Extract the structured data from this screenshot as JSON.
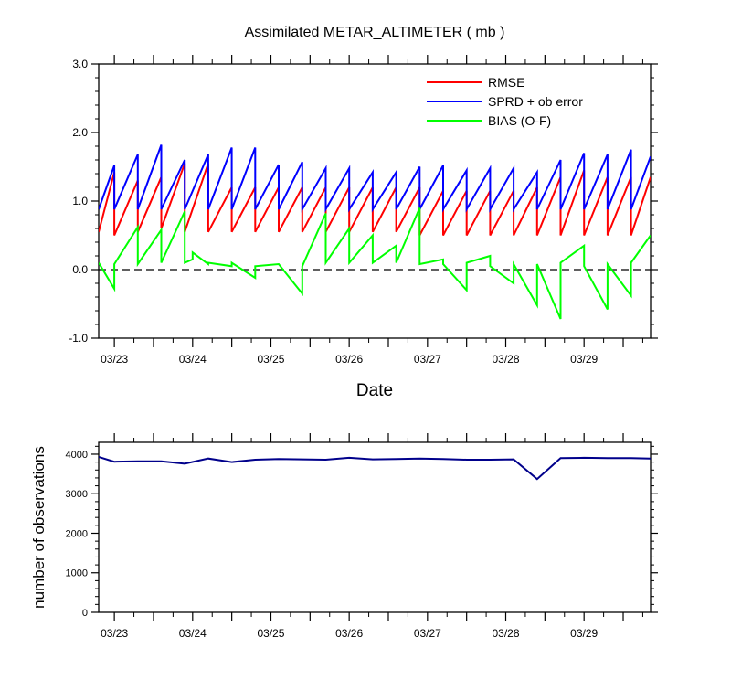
{
  "chart_data": [
    {
      "type": "line",
      "title": "Assimilated METAR_ALTIMETER ( mb )",
      "xlabel": "Date",
      "ylabel": "",
      "ylim": [
        -1.0,
        3.0
      ],
      "yticks": [
        -1.0,
        0.0,
        1.0,
        2.0,
        3.0
      ],
      "ytick_labels": [
        "-1.0",
        "0.0",
        "1.0",
        "2.0",
        "3.0"
      ],
      "xlim": [
        22.8,
        29.85
      ],
      "xticks": [
        23,
        24,
        25,
        26,
        27,
        28,
        29
      ],
      "xtick_labels": [
        "03/23",
        "03/24",
        "03/25",
        "03/26",
        "03/27",
        "03/28",
        "03/29"
      ],
      "zero_line": "dashed",
      "legend_position": "top-right",
      "series": [
        {
          "name": "RMSE",
          "color": "#ff0000",
          "x": [
            22.8,
            23.0,
            23.0,
            23.3,
            23.3,
            23.6,
            23.6,
            23.9,
            23.9,
            24.2,
            24.2,
            24.5,
            24.5,
            24.8,
            24.8,
            25.1,
            25.1,
            25.4,
            25.4,
            25.7,
            25.7,
            26.0,
            26.0,
            26.3,
            26.3,
            26.6,
            26.6,
            26.9,
            26.9,
            27.2,
            27.2,
            27.5,
            27.5,
            27.8,
            27.8,
            28.1,
            28.1,
            28.4,
            28.4,
            28.7,
            28.7,
            29.0,
            29.0,
            29.3,
            29.3,
            29.6,
            29.6,
            29.85
          ],
          "values": [
            0.55,
            1.42,
            0.5,
            1.3,
            0.55,
            1.35,
            0.6,
            1.55,
            0.55,
            1.55,
            0.55,
            1.2,
            0.55,
            1.2,
            0.55,
            1.2,
            0.55,
            1.2,
            0.55,
            1.2,
            0.55,
            1.2,
            0.55,
            1.2,
            0.55,
            1.2,
            0.55,
            1.2,
            0.5,
            1.15,
            0.5,
            1.15,
            0.5,
            1.15,
            0.5,
            1.15,
            0.5,
            1.2,
            0.5,
            1.35,
            0.5,
            1.45,
            0.5,
            1.35,
            0.5,
            1.35,
            0.5,
            1.35
          ]
        },
        {
          "name": "SPRD + ob error",
          "color": "#0000ff",
          "x": [
            22.8,
            23.0,
            23.0,
            23.3,
            23.3,
            23.6,
            23.6,
            23.9,
            23.9,
            24.2,
            24.2,
            24.5,
            24.5,
            24.8,
            24.8,
            25.1,
            25.1,
            25.4,
            25.4,
            25.7,
            25.7,
            26.0,
            26.0,
            26.3,
            26.3,
            26.6,
            26.6,
            26.9,
            26.9,
            27.2,
            27.2,
            27.5,
            27.5,
            27.8,
            27.8,
            28.1,
            28.1,
            28.4,
            28.4,
            28.7,
            28.7,
            29.0,
            29.0,
            29.3,
            29.3,
            29.6,
            29.6,
            29.85
          ],
          "values": [
            0.88,
            1.52,
            0.88,
            1.68,
            0.88,
            1.82,
            0.88,
            1.6,
            0.88,
            1.68,
            0.88,
            1.78,
            0.88,
            1.78,
            0.88,
            1.53,
            0.88,
            1.57,
            0.88,
            1.48,
            0.88,
            1.48,
            0.88,
            1.42,
            0.88,
            1.42,
            0.88,
            1.5,
            0.88,
            1.52,
            0.88,
            1.45,
            0.88,
            1.48,
            0.88,
            1.48,
            0.88,
            1.42,
            0.88,
            1.6,
            0.88,
            1.7,
            0.88,
            1.68,
            0.88,
            1.75,
            0.88,
            1.65
          ]
        },
        {
          "name": "BIAS (O-F)",
          "color": "#00ff00",
          "x": [
            22.8,
            23.0,
            23.0,
            23.3,
            23.3,
            23.6,
            23.6,
            23.9,
            23.9,
            24.0,
            24.0,
            24.2,
            24.2,
            24.5,
            24.5,
            24.8,
            24.8,
            25.1,
            25.1,
            25.4,
            25.4,
            25.7,
            25.7,
            26.0,
            26.0,
            26.3,
            26.3,
            26.6,
            26.6,
            26.9,
            26.9,
            27.2,
            27.2,
            27.5,
            27.5,
            27.8,
            27.8,
            28.1,
            28.1,
            28.4,
            28.4,
            28.7,
            28.7,
            29.0,
            29.0,
            29.3,
            29.3,
            29.6,
            29.6,
            29.85
          ],
          "values": [
            0.1,
            -0.28,
            0.08,
            0.62,
            0.08,
            0.58,
            0.1,
            0.85,
            0.1,
            0.15,
            0.25,
            0.08,
            0.1,
            0.05,
            0.1,
            -0.12,
            0.05,
            0.08,
            0.08,
            -0.35,
            0.05,
            0.82,
            0.1,
            0.6,
            0.1,
            0.5,
            0.1,
            0.35,
            0.1,
            0.9,
            0.08,
            0.15,
            0.08,
            -0.3,
            0.1,
            0.2,
            0.05,
            -0.2,
            0.08,
            -0.52,
            0.08,
            -0.72,
            0.1,
            0.35,
            0.05,
            -0.58,
            0.08,
            -0.38,
            0.1,
            0.5
          ]
        }
      ]
    },
    {
      "type": "line",
      "title": "",
      "xlabel": "",
      "ylabel": "number of observations",
      "ylim": [
        0,
        4300
      ],
      "yticks": [
        0,
        1000,
        2000,
        3000,
        4000
      ],
      "ytick_labels": [
        "0",
        "1000",
        "2000",
        "3000",
        "4000"
      ],
      "xlim": [
        22.8,
        29.85
      ],
      "xticks": [
        23,
        24,
        25,
        26,
        27,
        28,
        29
      ],
      "xtick_labels": [
        "03/23",
        "03/24",
        "03/25",
        "03/26",
        "03/27",
        "03/28",
        "03/29"
      ],
      "series": [
        {
          "name": "observations",
          "color": "#00008b",
          "x": [
            22.8,
            23.0,
            23.3,
            23.6,
            23.9,
            24.2,
            24.5,
            24.8,
            25.1,
            25.4,
            25.7,
            26.0,
            26.3,
            26.6,
            26.9,
            27.2,
            27.5,
            27.8,
            28.1,
            28.4,
            28.7,
            29.0,
            29.3,
            29.6,
            29.85
          ],
          "values": [
            3930,
            3810,
            3820,
            3820,
            3760,
            3890,
            3800,
            3860,
            3880,
            3870,
            3860,
            3910,
            3870,
            3880,
            3890,
            3880,
            3860,
            3860,
            3870,
            3370,
            3900,
            3910,
            3900,
            3900,
            3890
          ]
        }
      ]
    }
  ]
}
